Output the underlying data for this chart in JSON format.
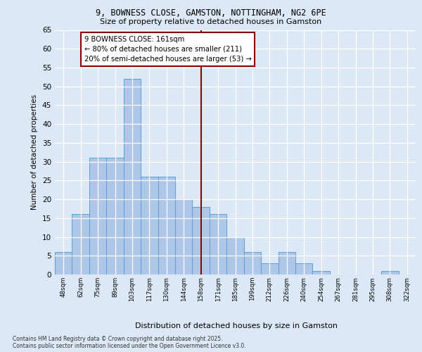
{
  "title_line1": "9, BOWNESS CLOSE, GAMSTON, NOTTINGHAM, NG2 6PE",
  "title_line2": "Size of property relative to detached houses in Gamston",
  "xlabel": "Distribution of detached houses by size in Gamston",
  "ylabel": "Number of detached properties",
  "categories": [
    "48sqm",
    "62sqm",
    "75sqm",
    "89sqm",
    "103sqm",
    "117sqm",
    "130sqm",
    "144sqm",
    "158sqm",
    "171sqm",
    "185sqm",
    "199sqm",
    "212sqm",
    "226sqm",
    "240sqm",
    "254sqm",
    "267sqm",
    "281sqm",
    "295sqm",
    "308sqm",
    "322sqm"
  ],
  "values": [
    6,
    16,
    31,
    31,
    52,
    26,
    26,
    20,
    18,
    16,
    10,
    6,
    3,
    6,
    3,
    1,
    0,
    0,
    0,
    1,
    0
  ],
  "bar_color": "#aec6e8",
  "bar_edge_color": "#5a9fd4",
  "vline_x": 8,
  "vline_color": "#8b0000",
  "annotation_text": "9 BOWNESS CLOSE: 161sqm\n← 80% of detached houses are smaller (211)\n20% of semi-detached houses are larger (53) →",
  "annotation_box_color": "#8b0000",
  "ylim": [
    0,
    65
  ],
  "yticks": [
    0,
    5,
    10,
    15,
    20,
    25,
    30,
    35,
    40,
    45,
    50,
    55,
    60,
    65
  ],
  "footer_line1": "Contains HM Land Registry data © Crown copyright and database right 2025.",
  "footer_line2": "Contains public sector information licensed under the Open Government Licence v3.0.",
  "bg_color": "#dce8f5",
  "plot_bg_color": "#dce8f5"
}
